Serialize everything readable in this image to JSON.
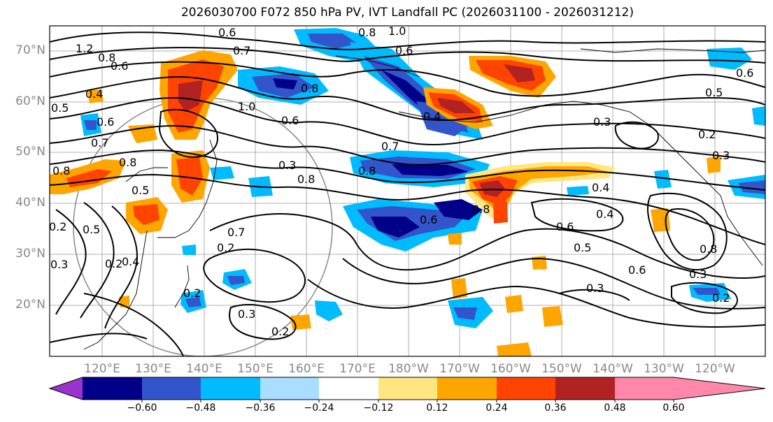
{
  "title": "2026030700 F072 850 hPa PV, IVT Landfall PC (2026031100 - 2026031212)",
  "lat_labels": [
    "70°N",
    "60°N",
    "50°N",
    "40°N",
    "30°N",
    "20°N"
  ],
  "lon_labels": [
    "120°E",
    "130°E",
    "140°E",
    "150°E",
    "160°E",
    "170°E",
    "180°W",
    "170°W",
    "160°W",
    "150°W",
    "140°W",
    "130°W",
    "120°W"
  ],
  "colorbar": {
    "tick_labels": [
      "−0.60",
      "−0.48",
      "−0.36",
      "−0.24",
      "−0.12",
      "0.12",
      "0.24",
      "0.36",
      "0.48",
      "0.60"
    ],
    "colors": [
      "#9933cc",
      "#000088",
      "#3355cc",
      "#00bbff",
      "#aaddff",
      "#ffffff",
      "#ffe680",
      "#ffa500",
      "#ff4400",
      "#b22222",
      "#ff88aa"
    ]
  },
  "contour_labels": [
    "0.6",
    "1.0",
    "0.8",
    "0.6",
    "0.7",
    "1.2",
    "0.8",
    "0.6",
    "0.4",
    "0.5",
    "0.6",
    "0.7",
    "0.8",
    "1.0",
    "0.8",
    "0.6",
    "0.3",
    "0.8",
    "0.7",
    "0.8",
    "0.6",
    "0.4",
    "0.8",
    "0.6",
    "0.5",
    "0.3",
    "0.2",
    "0.3",
    "0.4",
    "0.4",
    "0.6",
    "0.5",
    "0.3",
    "0.6",
    "0.8",
    "0.3",
    "0.2",
    "0.3",
    "0.2",
    "0.5",
    "0.2",
    "0.2",
    "0.2",
    "0.7",
    "0.5",
    "0.2",
    "0.3",
    "0.8",
    "0.4"
  ]
}
